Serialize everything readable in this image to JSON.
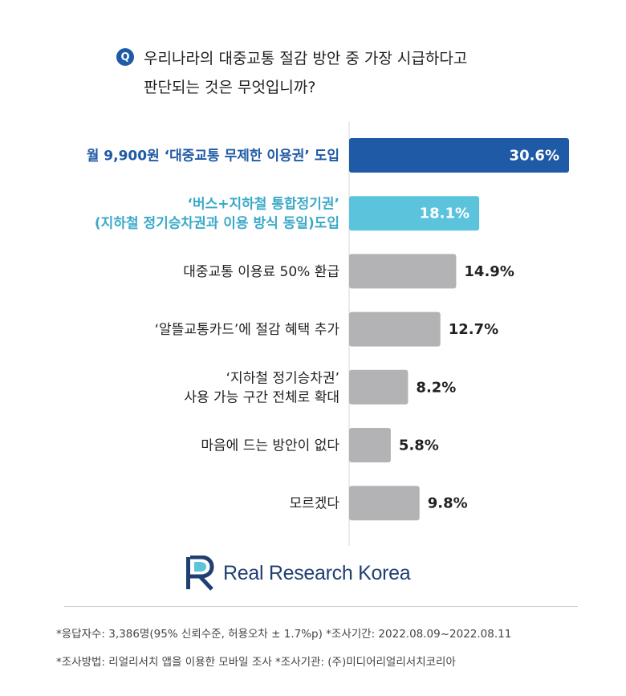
{
  "question": {
    "badge": "Q",
    "line1": "우리나라의 대중교통 절감 방안 중 가장 시급하다고",
    "line2": "판단되는 것은 무엇입니까?"
  },
  "chart_data": {
    "type": "bar",
    "orientation": "horizontal",
    "categories": [
      [
        "월 9,900원 ‘대중교통 무제한 이용권’ 도입"
      ],
      [
        "‘버스+지하철 통합정기권’",
        "(지하철 정기승차권과 이용 방식 동일)도입"
      ],
      [
        "대중교통 이용료 50% 환급"
      ],
      [
        "‘알뜰교통카드’에 절감 혜택 추가"
      ],
      [
        "‘지하철 정기승차권’",
        "사용 가능 구간 전체로 확대"
      ],
      [
        "마음에 드는 방안이 없다"
      ],
      [
        "모르겠다"
      ]
    ],
    "values": [
      30.6,
      18.1,
      14.9,
      12.7,
      8.2,
      5.8,
      9.8
    ],
    "value_labels": [
      "30.6%",
      "18.1%",
      "14.9%",
      "12.7%",
      "8.2%",
      "5.8%",
      "9.8%"
    ],
    "bar_colors": [
      "#1f5aa6",
      "#5bc4dc",
      "#b3b3b5",
      "#b3b3b5",
      "#b3b3b5",
      "#b3b3b5",
      "#b3b3b5"
    ],
    "label_colors": [
      "#1f5aa6",
      "#3aa9c8",
      "#222222",
      "#222222",
      "#222222",
      "#222222",
      "#222222"
    ],
    "value_inside": [
      true,
      true,
      false,
      false,
      false,
      false,
      false
    ],
    "xlim": [
      0,
      30.6
    ]
  },
  "logo": {
    "text": "Real Research Korea",
    "color": "#1f3f73"
  },
  "notes": {
    "line1": "*응답자수: 3,386명(95% 신뢰수준, 허용오차 ± 1.7%p)  *조사기간: 2022.08.09~2022.08.11",
    "line2": "*조사방법: 리얼리서치 앱을 이용한 모바일 조사  *조사기관: (주)미디어리얼리서치코리아"
  }
}
